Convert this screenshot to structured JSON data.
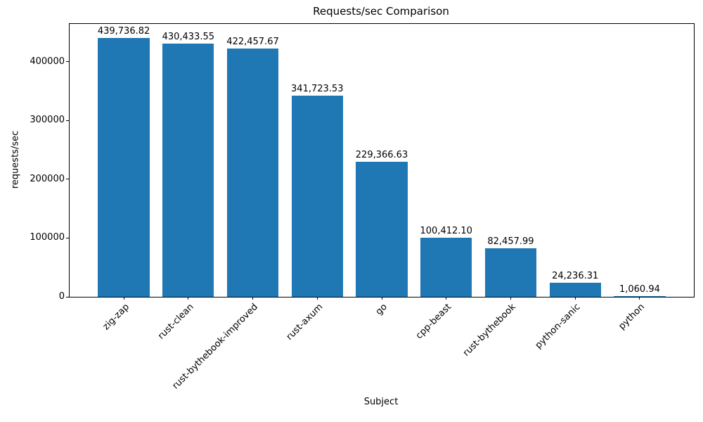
{
  "chart_data": {
    "type": "bar",
    "title": "Requests/sec Comparison",
    "xlabel": "Subject",
    "ylabel": "requests/sec",
    "categories": [
      "zig-zap",
      "rust-clean",
      "rust-bythebook-improved",
      "rust-axum",
      "go",
      "cpp-beast",
      "rust-bythebook",
      "python-sanic",
      "python"
    ],
    "values": [
      439736.82,
      430433.55,
      422457.67,
      341723.53,
      229366.63,
      100412.1,
      82457.99,
      24236.31,
      1060.94
    ],
    "value_labels": [
      "439,736.82",
      "430,433.55",
      "422,457.67",
      "341,723.53",
      "229,366.63",
      "100,412.10",
      "82,457.99",
      "24,236.31",
      "1,060.94"
    ],
    "yticks": [
      0,
      100000,
      200000,
      300000,
      400000
    ],
    "ytick_labels": [
      "0",
      "100000",
      "200000",
      "300000",
      "400000"
    ],
    "ylim": [
      0,
      464000
    ],
    "bar_color": "#1f77b4",
    "grid": "off",
    "legend": "none",
    "x_tick_rotation_deg": 45
  }
}
